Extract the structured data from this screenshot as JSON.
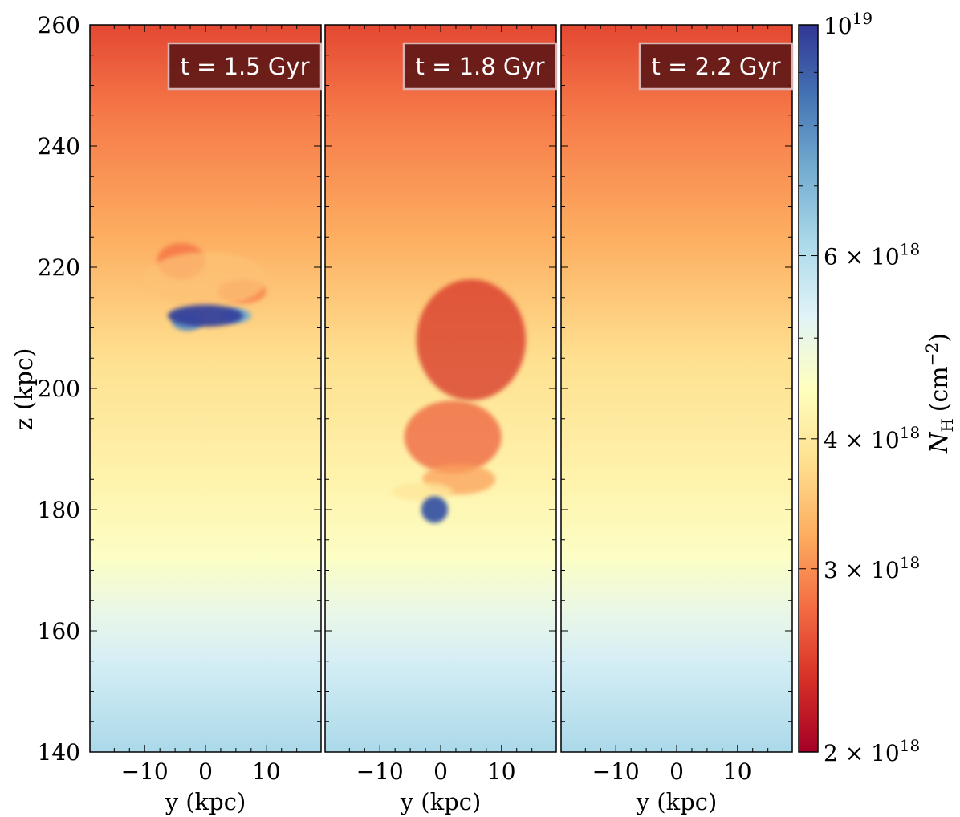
{
  "chart_data": {
    "type": "heatmap",
    "panels": [
      {
        "label": "t = 1.5 Gyr",
        "xlabel": "y   (kpc)",
        "xticks": [
          -10,
          0,
          10
        ],
        "xlim": [
          -19,
          19
        ],
        "clouds": [
          {
            "y": 0,
            "z": 212,
            "sy": 6.2,
            "sz": 1.8,
            "amp": 0.98
          },
          {
            "y": -3,
            "z": 211,
            "sy": 2.5,
            "sz": 1.5,
            "amp": 0.85
          },
          {
            "y": 5,
            "z": 212,
            "sy": 2.5,
            "sz": 1.2,
            "amp": 0.8
          },
          {
            "y": 0,
            "z": 218,
            "sy": 10,
            "sz": 4.5,
            "amp": 0.34
          },
          {
            "y": -4,
            "z": 221,
            "sy": 4,
            "sz": 3,
            "amp": 0.2
          },
          {
            "y": 6,
            "z": 216,
            "sy": 4,
            "sz": 2,
            "amp": 0.22
          }
        ]
      },
      {
        "label": "t = 1.8 Gyr",
        "xlabel": "y   (kpc)",
        "xticks": [
          -10,
          0,
          10
        ],
        "xlim": [
          -19,
          19
        ],
        "clouds": [
          {
            "y": -1,
            "z": 180,
            "sy": 2.2,
            "sz": 2.2,
            "amp": 0.95
          },
          {
            "y": -3,
            "z": 183,
            "sy": 5,
            "sz": 1.5,
            "amp": 0.42
          },
          {
            "y": 3,
            "z": 185,
            "sy": 6,
            "sz": 2.5,
            "amp": 0.28
          },
          {
            "y": 2,
            "z": 192,
            "sy": 8,
            "sz": 6,
            "amp": 0.18
          },
          {
            "y": 5,
            "z": 208,
            "sy": 9,
            "sz": 10,
            "amp": 0.1
          }
        ]
      },
      {
        "label": "t = 2.2 Gyr",
        "xlabel": "y   (kpc)",
        "xticks": [
          -10,
          0,
          10
        ],
        "xlim": [
          -19,
          19
        ],
        "clouds": []
      }
    ],
    "ylabel": "z   (kpc)",
    "ylim": [
      140,
      260
    ],
    "yticks": [
      140,
      160,
      180,
      200,
      220,
      240,
      260
    ],
    "colorbar": {
      "label_main": "N",
      "label_sub": "H",
      "label_unit": "(cm",
      "label_exp": "−2",
      "label_close": ")",
      "range": [
        2e+18,
        1e+19
      ],
      "scale": "log",
      "ticks": [
        {
          "value": 2e+18,
          "mant": "2 × 10",
          "exp": "18"
        },
        {
          "value": 3e+18,
          "mant": "3 × 10",
          "exp": "18"
        },
        {
          "value": 4e+18,
          "mant": "4 × 10",
          "exp": "18"
        },
        {
          "value": 6e+18,
          "mant": "6 × 10",
          "exp": "18"
        },
        {
          "value": 1e+19,
          "mant": "10",
          "exp": "19"
        }
      ],
      "colormap": "RdYlBu",
      "colors": [
        "#a50026",
        "#d73027",
        "#f46d43",
        "#fdae61",
        "#fee090",
        "#ffffbf",
        "#e0f3f8",
        "#abd9e9",
        "#74add1",
        "#4575b4",
        "#313695"
      ]
    },
    "background_gradient": [
      {
        "z": 260,
        "value": 0.14
      },
      {
        "z": 245,
        "value": 0.22
      },
      {
        "z": 225,
        "value": 0.3
      },
      {
        "z": 205,
        "value": 0.4
      },
      {
        "z": 185,
        "value": 0.46
      },
      {
        "z": 172,
        "value": 0.51
      },
      {
        "z": 163,
        "value": 0.57
      },
      {
        "z": 155,
        "value": 0.62
      },
      {
        "z": 140,
        "value": 0.7
      }
    ]
  }
}
